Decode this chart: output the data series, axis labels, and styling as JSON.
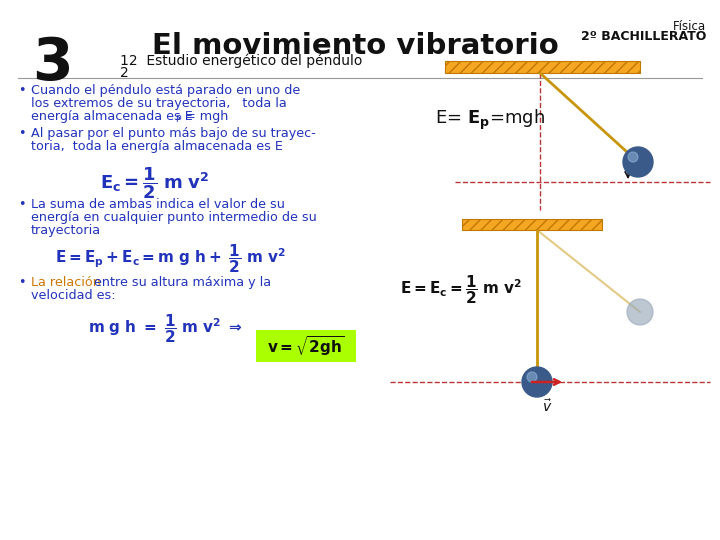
{
  "bg_color": "#ffffff",
  "title_number": "3",
  "title_main": "El movimiento vibratorio",
  "title_sub1": "12  Estudio energético del péndulo",
  "title_sub2": "2",
  "fisica": "Física",
  "bachillerato": "2º BACHILLERATO",
  "blue_text": "#2233bb",
  "black_text": "#111111",
  "orange_bar": "#F5A623",
  "dashed_color": "#bb3333",
  "rope_color": "#c8950a",
  "ball_color": "#3a5a8a",
  "ball_color2": "#99aabb",
  "green_box": "#aaff00",
  "eq_top": "E= $\\mathbf{E_p}$=mgh",
  "eq_bot_label": "$\\mathbf{E = E_c = \\dfrac{1}{2}\\ m\\ v^2}$"
}
